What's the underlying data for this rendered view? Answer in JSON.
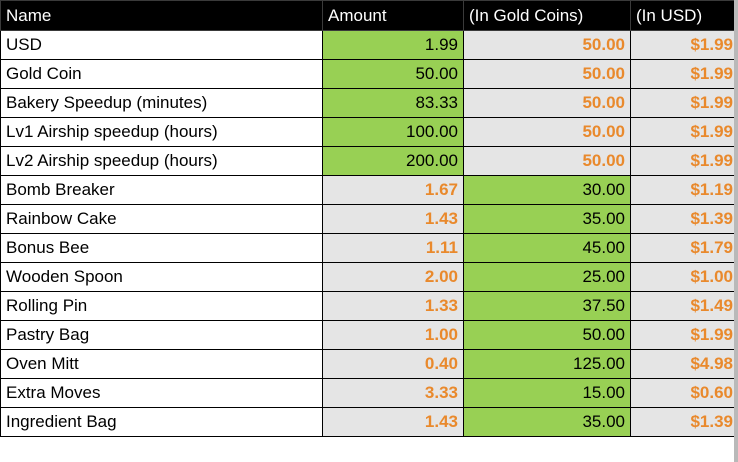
{
  "headers": [
    "Name",
    "Amount",
    "(In Gold Coins)",
    "(In USD)"
  ],
  "colors": {
    "header_bg": "#000000",
    "green": "#98d054",
    "orange": "#e9892c",
    "shaded": "#e5e5e5"
  },
  "rows": [
    {
      "name": "USD",
      "amount": "1.99",
      "gold": "50.00",
      "usd": "$1.99"
    },
    {
      "name": "Gold Coin",
      "amount": "50.00",
      "gold": "50.00",
      "usd": "$1.99"
    },
    {
      "name": "Bakery Speedup (minutes)",
      "amount": "83.33",
      "gold": "50.00",
      "usd": "$1.99"
    },
    {
      "name": "Lv1 Airship speedup (hours)",
      "amount": "100.00",
      "gold": "50.00",
      "usd": "$1.99"
    },
    {
      "name": "Lv2 Airship speedup (hours)",
      "amount": "200.00",
      "gold": "50.00",
      "usd": "$1.99"
    },
    {
      "name": "Bomb Breaker",
      "amount": "1.67",
      "gold": "30.00",
      "usd": "$1.19"
    },
    {
      "name": "Rainbow Cake",
      "amount": "1.43",
      "gold": "35.00",
      "usd": "$1.39"
    },
    {
      "name": "Bonus Bee",
      "amount": "1.11",
      "gold": "45.00",
      "usd": "$1.79"
    },
    {
      "name": "Wooden Spoon",
      "amount": "2.00",
      "gold": "25.00",
      "usd": "$1.00"
    },
    {
      "name": "Rolling Pin",
      "amount": "1.33",
      "gold": "37.50",
      "usd": "$1.49"
    },
    {
      "name": "Pastry Bag",
      "amount": "1.00",
      "gold": "50.00",
      "usd": "$1.99"
    },
    {
      "name": "Oven Mitt",
      "amount": "0.40",
      "gold": "125.00",
      "usd": "$4.98"
    },
    {
      "name": "Extra Moves",
      "amount": "3.33",
      "gold": "15.00",
      "usd": "$0.60"
    },
    {
      "name": "Ingredient Bag",
      "amount": "1.43",
      "gold": "35.00",
      "usd": "$1.39"
    }
  ]
}
